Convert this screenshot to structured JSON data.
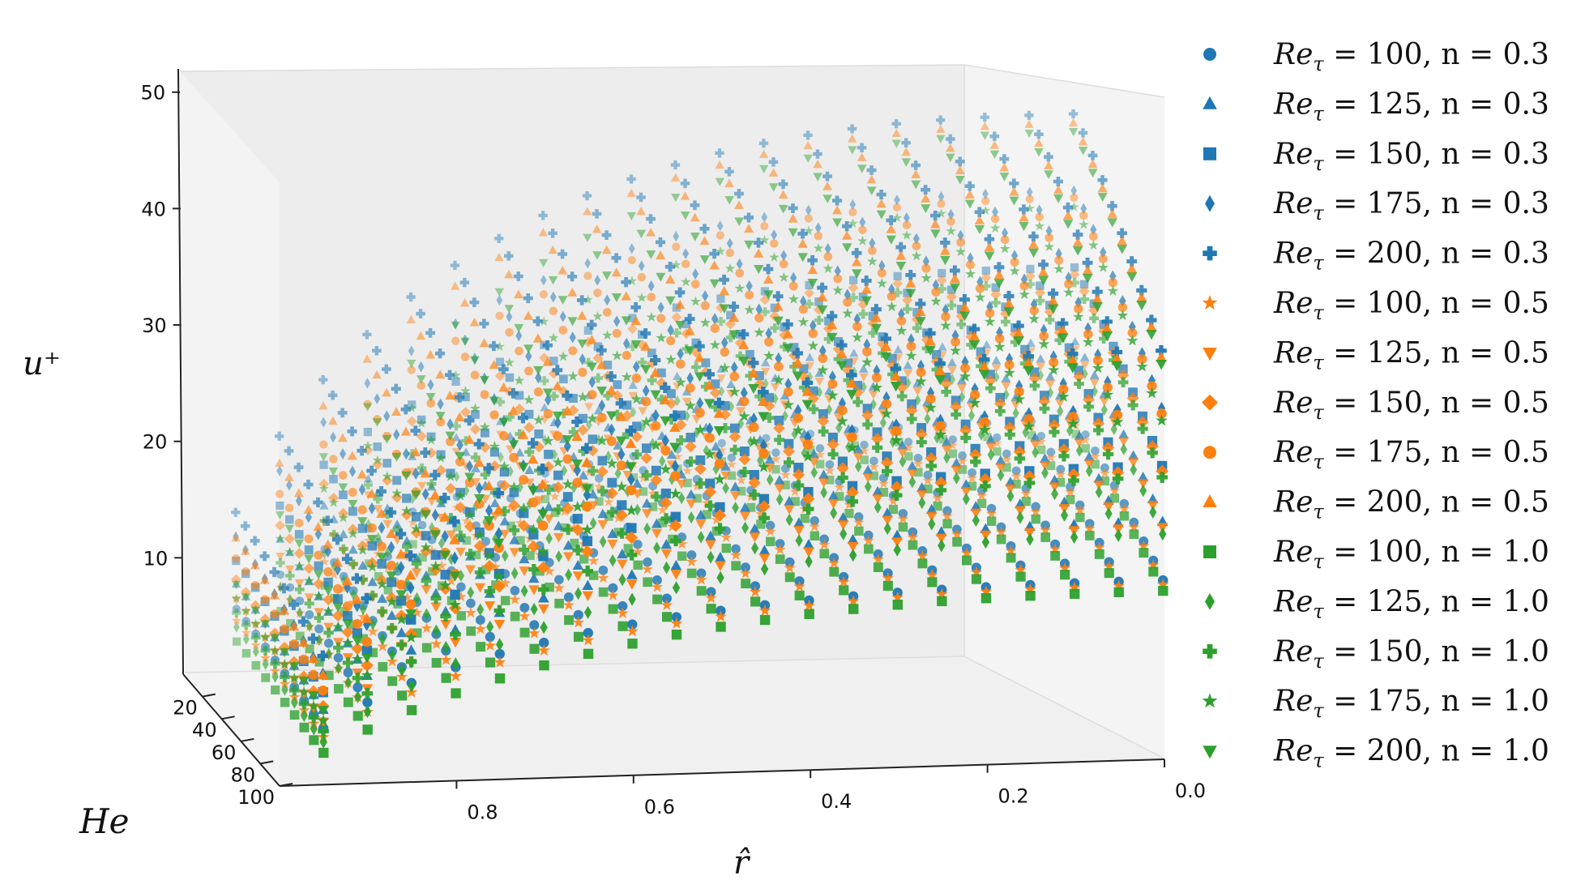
{
  "chart_data": {
    "type": "scatter",
    "projection": "3d",
    "xlabel": "r̂",
    "ylabel": "He",
    "zlabel": "u⁺",
    "x_ticks": [
      "0.8",
      "0.6",
      "0.4",
      "0.2",
      "0.0"
    ],
    "y_ticks": [
      "20",
      "40",
      "60",
      "80",
      "100"
    ],
    "z_ticks": [
      "10",
      "20",
      "30",
      "40",
      "50"
    ],
    "xlim": [
      1.0,
      0.0
    ],
    "ylim": [
      0,
      100
    ],
    "zlim": [
      0,
      52
    ],
    "grid": false,
    "legend_position": "right",
    "series": [
      {
        "name": "Re_τ = 100, n = 0.3",
        "legend_label": {
          "main": "Re",
          "sub": "τ",
          "rest": " = 100, n = 0.3"
        },
        "color": "#1f77b4",
        "marker": "circle",
        "Re": 100,
        "n": 0.3,
        "u_centerline": 20.5
      },
      {
        "name": "Re_τ = 125, n = 0.3",
        "legend_label": {
          "main": "Re",
          "sub": "τ",
          "rest": " = 125, n = 0.3"
        },
        "color": "#1f77b4",
        "marker": "triangle-up",
        "Re": 125,
        "n": 0.3,
        "u_centerline": 27.2
      },
      {
        "name": "Re_τ = 150, n = 0.3",
        "legend_label": {
          "main": "Re",
          "sub": "τ",
          "rest": " = 150, n = 0.3"
        },
        "color": "#1f77b4",
        "marker": "square",
        "Re": 150,
        "n": 0.3,
        "u_centerline": 33.6
      },
      {
        "name": "Re_τ = 175, n = 0.3",
        "legend_label": {
          "main": "Re",
          "sub": "τ",
          "rest": " = 175, n = 0.3"
        },
        "color": "#1f77b4",
        "marker": "thin-diamond",
        "Re": 175,
        "n": 0.3,
        "u_centerline": 40.2
      },
      {
        "name": "Re_τ = 200, n = 0.3",
        "legend_label": {
          "main": "Re",
          "sub": "τ",
          "rest": " = 200, n = 0.3"
        },
        "color": "#1f77b4",
        "marker": "plus",
        "Re": 200,
        "n": 0.3,
        "u_centerline": 46.8
      },
      {
        "name": "Re_τ = 100, n = 0.5",
        "legend_label": {
          "main": "Re",
          "sub": "τ",
          "rest": " = 100, n = 0.5"
        },
        "color": "#ff7f0e",
        "marker": "star",
        "Re": 100,
        "n": 0.5,
        "u_centerline": 20.0
      },
      {
        "name": "Re_τ = 125, n = 0.5",
        "legend_label": {
          "main": "Re",
          "sub": "τ",
          "rest": " = 125, n = 0.5"
        },
        "color": "#ff7f0e",
        "marker": "triangle-down",
        "Re": 125,
        "n": 0.5,
        "u_centerline": 26.6
      },
      {
        "name": "Re_τ = 150, n = 0.5",
        "legend_label": {
          "main": "Re",
          "sub": "τ",
          "rest": " = 150, n = 0.5"
        },
        "color": "#ff7f0e",
        "marker": "diamond",
        "Re": 150,
        "n": 0.5,
        "u_centerline": 33.0
      },
      {
        "name": "Re_τ = 175, n = 0.5",
        "legend_label": {
          "main": "Re",
          "sub": "τ",
          "rest": " = 175, n = 0.5"
        },
        "color": "#ff7f0e",
        "marker": "circle",
        "Re": 175,
        "n": 0.5,
        "u_centerline": 39.6
      },
      {
        "name": "Re_τ = 200, n = 0.5",
        "legend_label": {
          "main": "Re",
          "sub": "τ",
          "rest": " = 200, n = 0.5"
        },
        "color": "#ff7f0e",
        "marker": "triangle-up",
        "Re": 200,
        "n": 0.5,
        "u_centerline": 46.0
      },
      {
        "name": "Re_τ = 100, n = 1.0",
        "legend_label": {
          "main": "Re",
          "sub": "τ",
          "rest": " = 100, n = 1.0"
        },
        "color": "#2ca02c",
        "marker": "square",
        "Re": 100,
        "n": 1.0,
        "u_centerline": 19.3
      },
      {
        "name": "Re_τ = 125, n = 1.0",
        "legend_label": {
          "main": "Re",
          "sub": "τ",
          "rest": " = 125, n = 1.0"
        },
        "color": "#2ca02c",
        "marker": "thin-diamond",
        "Re": 125,
        "n": 1.0,
        "u_centerline": 25.8
      },
      {
        "name": "Re_τ = 150, n = 1.0",
        "legend_label": {
          "main": "Re",
          "sub": "τ",
          "rest": " = 150, n = 1.0"
        },
        "color": "#2ca02c",
        "marker": "plus",
        "Re": 150,
        "n": 1.0,
        "u_centerline": 32.3
      },
      {
        "name": "Re_τ = 175, n = 1.0",
        "legend_label": {
          "main": "Re",
          "sub": "τ",
          "rest": " = 175, n = 1.0"
        },
        "color": "#2ca02c",
        "marker": "star",
        "Re": 175,
        "n": 1.0,
        "u_centerline": 38.8
      },
      {
        "name": "Re_τ = 200, n = 1.0",
        "legend_label": {
          "main": "Re",
          "sub": "τ",
          "rest": " = 200, n = 1.0"
        },
        "color": "#2ca02c",
        "marker": "triangle-down",
        "Re": 200,
        "n": 1.0,
        "u_centerline": 45.3
      }
    ],
    "r_samples": [
      1.0,
      0.95,
      0.9,
      0.85,
      0.8,
      0.75,
      0.7,
      0.65,
      0.6,
      0.55,
      0.5,
      0.45,
      0.4,
      0.35,
      0.3,
      0.25,
      0.2,
      0.15,
      0.1,
      0.05,
      0.0
    ],
    "He_samples": [
      10,
      20,
      30,
      40,
      50,
      60,
      70,
      80,
      90,
      100
    ]
  }
}
